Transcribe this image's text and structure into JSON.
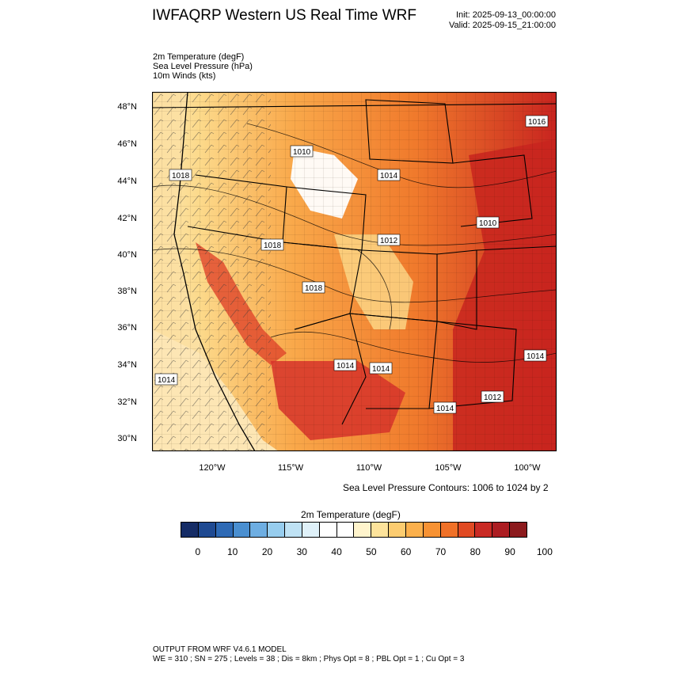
{
  "header": {
    "title": "IWFAQRP Western US Real Time WRF",
    "init": "Init: 2025-09-13_00:00:00",
    "valid": "Valid: 2025-09-15_21:00:00"
  },
  "fields": [
    "2m Temperature   (degF)",
    "Sea Level Pressure   (hPa)",
    "10m Winds   (kts)"
  ],
  "map": {
    "lat_labels": [
      "48°N",
      "46°N",
      "44°N",
      "42°N",
      "40°N",
      "38°N",
      "36°N",
      "34°N",
      "32°N",
      "30°N"
    ],
    "lon_labels": [
      "120°W",
      "115°W",
      "110°W",
      "105°W",
      "100°W"
    ],
    "pressure_labels": [
      "1010",
      "1018",
      "1014",
      "1018",
      "1012",
      "1010",
      "1014",
      "1018",
      "1014",
      "1014",
      "1014",
      "1012",
      "1014",
      "1016"
    ]
  },
  "contour_note": "Sea Level Pressure Contours: 1006 to 1024 by 2",
  "colorbar": {
    "title": "2m Temperature  (degF)",
    "labels": [
      "0",
      "10",
      "20",
      "30",
      "40",
      "50",
      "60",
      "70",
      "80",
      "90",
      "100"
    ],
    "colors": [
      "#152c66",
      "#1f4a92",
      "#2e6ab5",
      "#4a8fd0",
      "#6eaee2",
      "#97cdee",
      "#bfe2f4",
      "#dff1f9",
      "#ffffff",
      "#ffffff",
      "#fff4cc",
      "#fde39b",
      "#fccc70",
      "#fbb04c",
      "#f79233",
      "#f07128",
      "#e04a23",
      "#c92a24",
      "#ac1d22",
      "#8c1a1d"
    ]
  },
  "footer": {
    "line1": "OUTPUT FROM WRF V4.6.1 MODEL",
    "line2": "WE = 310 ; SN = 275 ; Levels = 38 ; Dis = 8km ; Phys Opt = 8 ; PBL Opt = 1 ; Cu Opt = 3"
  }
}
